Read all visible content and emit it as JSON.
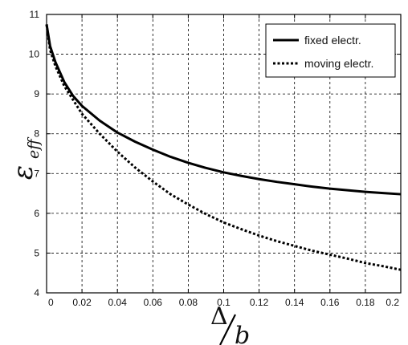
{
  "chart_data": {
    "type": "line",
    "title": "",
    "xlabel": {
      "numerator": "Δ",
      "denominator": "b"
    },
    "ylabel": {
      "symbol": "ε",
      "subscript": "eff"
    },
    "xlim": [
      0,
      0.2
    ],
    "ylim": [
      4,
      11
    ],
    "xticks": [
      "0",
      "0.02",
      "0.04",
      "0.06",
      "0.08",
      "0.1",
      "0.12",
      "0.14",
      "0.16",
      "0.18",
      "0.2"
    ],
    "yticks": [
      "4",
      "5",
      "6",
      "7",
      "8",
      "9",
      "10",
      "11"
    ],
    "grid": true,
    "legend_position": "top-right",
    "series": [
      {
        "name": "fixed electr.",
        "style": "solid",
        "color": "#000000",
        "x": [
          0,
          0.002,
          0.005,
          0.01,
          0.015,
          0.02,
          0.03,
          0.04,
          0.05,
          0.06,
          0.07,
          0.08,
          0.09,
          0.1,
          0.11,
          0.12,
          0.13,
          0.14,
          0.15,
          0.16,
          0.17,
          0.18,
          0.19,
          0.2
        ],
        "y": [
          10.75,
          10.2,
          9.8,
          9.3,
          8.95,
          8.7,
          8.33,
          8.03,
          7.8,
          7.6,
          7.42,
          7.27,
          7.14,
          7.03,
          6.94,
          6.86,
          6.79,
          6.73,
          6.67,
          6.62,
          6.58,
          6.54,
          6.51,
          6.48
        ]
      },
      {
        "name": "moving electr.",
        "style": "dotted",
        "color": "#000000",
        "x": [
          0,
          0.002,
          0.005,
          0.01,
          0.015,
          0.02,
          0.03,
          0.04,
          0.05,
          0.06,
          0.07,
          0.08,
          0.09,
          0.1,
          0.11,
          0.12,
          0.13,
          0.14,
          0.15,
          0.16,
          0.17,
          0.18,
          0.19,
          0.2
        ],
        "y": [
          10.75,
          10.1,
          9.7,
          9.2,
          8.85,
          8.5,
          8.0,
          7.55,
          7.15,
          6.8,
          6.48,
          6.22,
          5.98,
          5.77,
          5.6,
          5.44,
          5.3,
          5.18,
          5.06,
          4.96,
          4.86,
          4.75,
          4.67,
          4.58
        ]
      }
    ]
  }
}
